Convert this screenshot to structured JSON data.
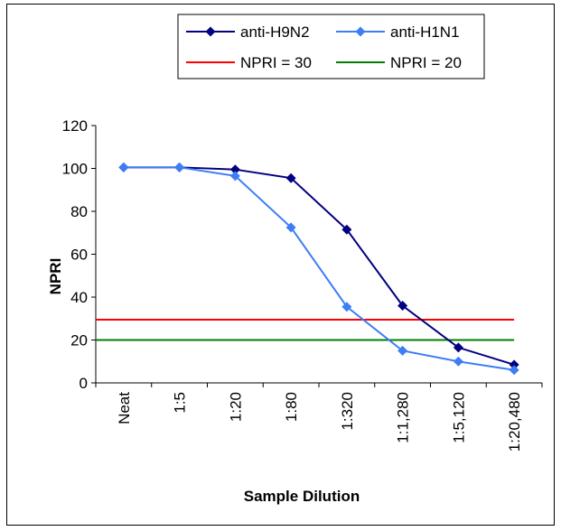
{
  "chart_data": {
    "type": "line",
    "categories": [
      "Neat",
      "1:5",
      "1:20",
      "1:80",
      "1:320",
      "1:1,280",
      "1:5,120",
      "1:20,480"
    ],
    "series": [
      {
        "name": "anti-H9N2",
        "color": "#000080",
        "marker": "diamond",
        "values": [
          100.5,
          100.5,
          99.5,
          95.5,
          71.5,
          36,
          16.5,
          8.5
        ]
      },
      {
        "name": "anti-H1N1",
        "color": "#3d7df5",
        "marker": "diamond",
        "values": [
          100.5,
          100.5,
          96.5,
          72.5,
          35.5,
          15,
          10,
          6
        ]
      }
    ],
    "reference_lines": [
      {
        "name": "NPRI = 30",
        "value": 29.5,
        "color": "#ff0000"
      },
      {
        "name": "NPRI = 20",
        "value": 20,
        "color": "#008000"
      }
    ],
    "xlabel": "Sample Dilution",
    "ylabel": "NPRI",
    "ylim": [
      0,
      120
    ],
    "yticks": [
      0,
      20,
      40,
      60,
      80,
      100,
      120
    ],
    "grid": false,
    "legend_position": "top"
  }
}
